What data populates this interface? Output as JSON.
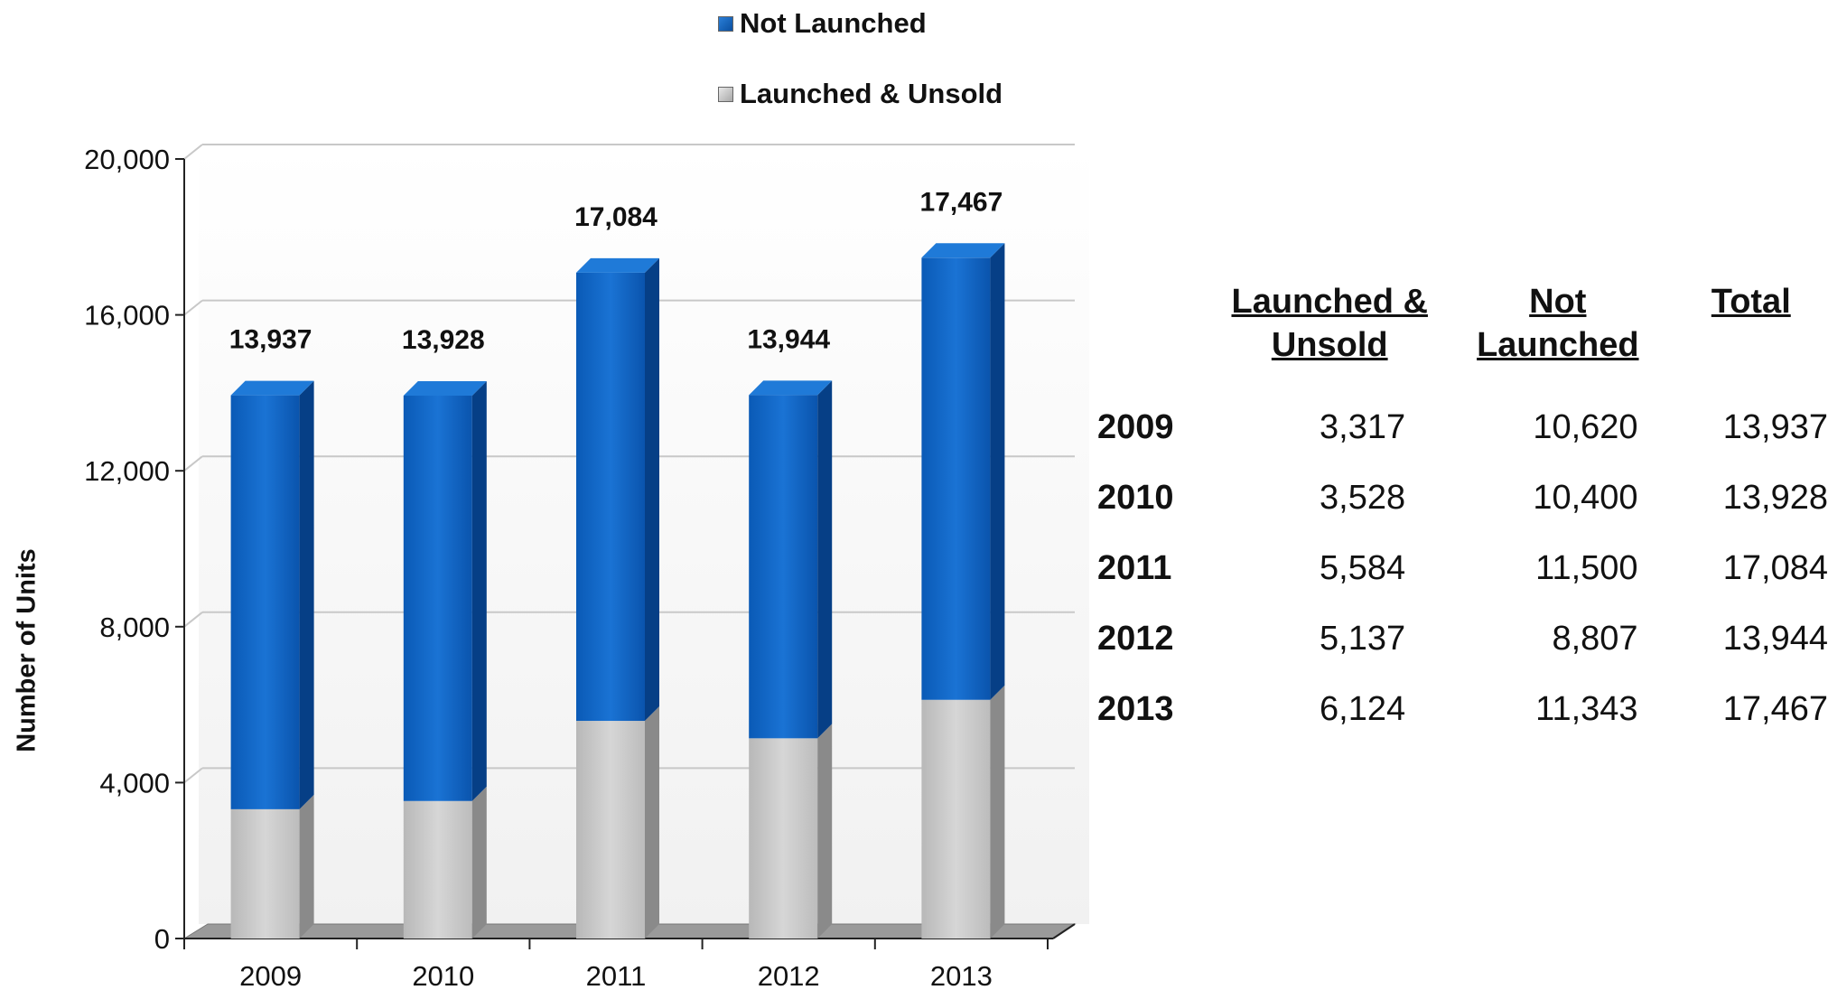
{
  "legend": {
    "not_launched": "Not Launched",
    "launched_unsold": "Launched & Unsold"
  },
  "table": {
    "headers": [
      "Launched & Unsold",
      "Not Launched",
      "Total"
    ],
    "rows": [
      {
        "year": "2009",
        "launched_unsold": "3,317",
        "not_launched": "10,620",
        "total": "13,937"
      },
      {
        "year": "2010",
        "launched_unsold": "3,528",
        "not_launched": "10,400",
        "total": "13,928"
      },
      {
        "year": "2011",
        "launched_unsold": "5,584",
        "not_launched": "11,500",
        "total": "17,084"
      },
      {
        "year": "2012",
        "launched_unsold": "5,137",
        "not_launched": "8,807",
        "total": "13,944"
      },
      {
        "year": "2013",
        "launched_unsold": "6,124",
        "not_launched": "11,343",
        "total": "17,467"
      }
    ]
  },
  "colors": {
    "not_launched": "#0b5cb8",
    "launched_unsold": "#c8c8c8"
  },
  "chart_data": {
    "type": "bar",
    "stacked": true,
    "categories": [
      "2009",
      "2010",
      "2011",
      "2012",
      "2013"
    ],
    "series": [
      {
        "name": "Launched & Unsold",
        "values": [
          3317,
          3528,
          5584,
          5137,
          6124
        ]
      },
      {
        "name": "Not Launched",
        "values": [
          10620,
          10400,
          11500,
          8807,
          11343
        ]
      }
    ],
    "totals": [
      13937,
      13928,
      17084,
      13944,
      17467
    ],
    "total_labels": [
      "13,937",
      "13,928",
      "17,084",
      "13,944",
      "17,467"
    ],
    "ylabel": "Number of Units",
    "xlabel": "",
    "ylim": [
      0,
      20000
    ],
    "yticks": [
      0,
      4000,
      8000,
      12000,
      16000,
      20000
    ],
    "ytick_labels": [
      "0",
      "4,000",
      "8,000",
      "12,000",
      "16,000",
      "20,000"
    ],
    "grid": true,
    "legend_position": "top"
  }
}
